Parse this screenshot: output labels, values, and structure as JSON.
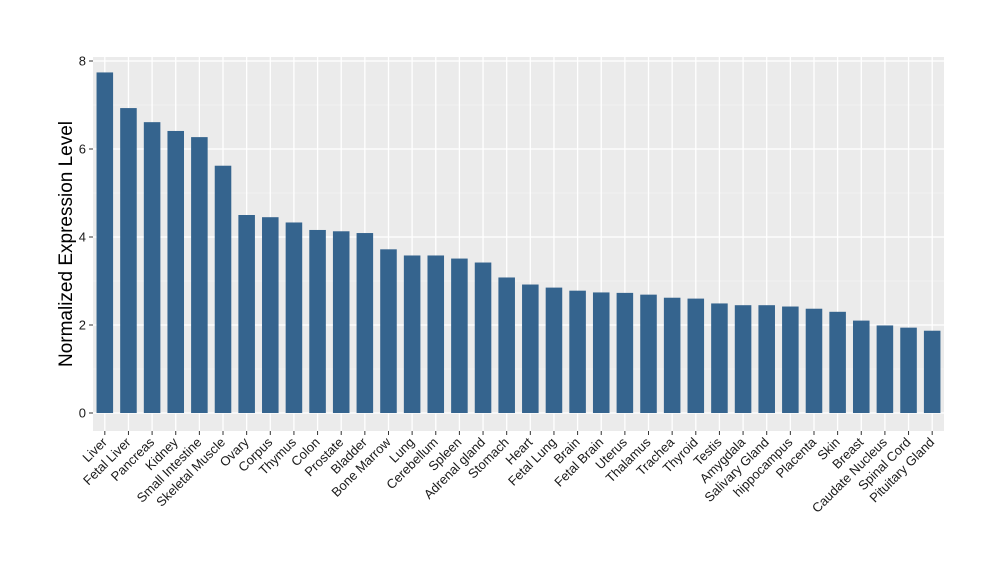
{
  "chart_data": {
    "type": "bar",
    "title": "",
    "xlabel": "",
    "ylabel": "Normalized Expression Level",
    "ylim": [
      -0.35,
      8.15
    ],
    "yticks": [
      0,
      2,
      4,
      6,
      8
    ],
    "grid": true,
    "colors": {
      "bar": "#35648e",
      "panel": "#ebebeb",
      "grid_major": "#ffffff",
      "grid_minor": "#f5f5f5"
    },
    "categories": [
      "Liver",
      "Fetal Liver",
      "Pancreas",
      "Kidney",
      "Small Intestine",
      "Skeletal Muscle",
      "Ovary",
      "Corpus",
      "Thymus",
      "Colon",
      "Prostate",
      "Bladder",
      "Bone Marrow",
      "Lung",
      "Cerebellum",
      "Spleen",
      "Adrenal gland",
      "Stomach",
      "Heart",
      "Fetal Lung",
      "Brain",
      "Fetal Brain",
      "Uterus",
      "Thalamus",
      "Trachea",
      "Thyroid",
      "Testis",
      "Amygdala",
      "Salivary Gland",
      "hippocampus",
      "Placenta",
      "Skin",
      "Breast",
      "Caudate Nucleus",
      "Spinal Cord",
      "Pituitary Gland"
    ],
    "values": [
      7.74,
      6.93,
      6.61,
      6.41,
      6.27,
      5.62,
      4.5,
      4.45,
      4.33,
      4.16,
      4.13,
      4.09,
      3.72,
      3.58,
      3.58,
      3.51,
      3.42,
      3.08,
      2.92,
      2.85,
      2.78,
      2.74,
      2.73,
      2.69,
      2.62,
      2.6,
      2.49,
      2.45,
      2.45,
      2.42,
      2.37,
      2.3,
      2.1,
      1.99,
      1.94,
      1.87
    ]
  }
}
